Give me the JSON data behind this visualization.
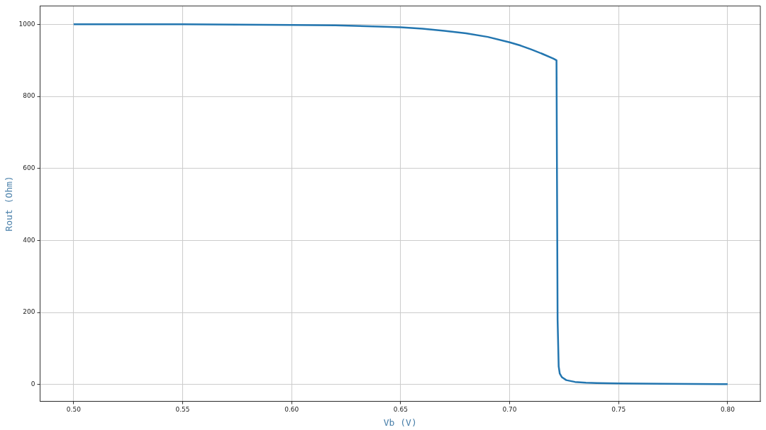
{
  "chart_data": {
    "type": "line",
    "xlabel": "Vb (V)",
    "ylabel": "Rout (Ohm)",
    "series": [
      {
        "color": "#2376b0",
        "x": [
          0.5,
          0.55,
          0.6,
          0.62,
          0.64,
          0.65,
          0.66,
          0.67,
          0.68,
          0.69,
          0.7,
          0.705,
          0.71,
          0.715,
          0.72,
          0.7215,
          0.722,
          0.7225,
          0.723,
          0.724,
          0.726,
          0.73,
          0.735,
          0.74,
          0.75,
          0.77,
          0.8
        ],
        "values": [
          1000,
          1000,
          998,
          997,
          994,
          992,
          988,
          982,
          975,
          965,
          950,
          941,
          930,
          918,
          905,
          900,
          180,
          50,
          30,
          20,
          12,
          7,
          5,
          4,
          3,
          2,
          1
        ]
      }
    ],
    "xlim": [
      0.4846,
      0.815
    ],
    "ylim": [
      -47,
      1051
    ],
    "xticks": [
      {
        "value": 0.5,
        "label": "0.50"
      },
      {
        "value": 0.55,
        "label": "0.55"
      },
      {
        "value": 0.6,
        "label": "0.60"
      },
      {
        "value": 0.65,
        "label": "0.65"
      },
      {
        "value": 0.7,
        "label": "0.70"
      },
      {
        "value": 0.75,
        "label": "0.75"
      },
      {
        "value": 0.8,
        "label": "0.80"
      }
    ],
    "yticks": [
      0,
      200,
      400,
      600,
      800,
      1000
    ],
    "grid": true,
    "legend": false,
    "marker": "none",
    "line_style": "solid"
  }
}
